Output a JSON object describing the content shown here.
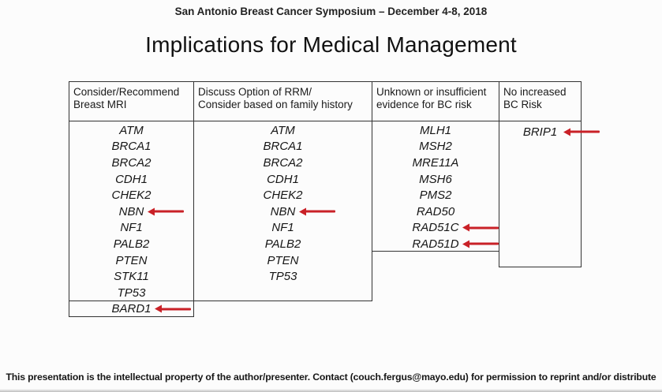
{
  "slide": {
    "symposium_line": "San Antonio Breast Cancer Symposium – December 4-8, 2018",
    "title": "Implications for Medical Management",
    "footer": "This presentation is the intellectual property of the author/presenter.  Contact (couch.fergus@mayo.edu) for permission to reprint and/or distribute"
  },
  "colors": {
    "arrow_red": "#c92127",
    "table_border": "#333333"
  },
  "table": {
    "columns": [
      {
        "id": "breast-mri",
        "header_lines": [
          "Consider/Recommend",
          "Breast MRI"
        ],
        "genes": [
          "ATM",
          "BRCA1",
          "BRCA2",
          "CDH1",
          "CHEK2",
          "NBN",
          "NF1",
          "PALB2",
          "PTEN",
          "STK11",
          "TP53"
        ],
        "arrowed": [
          "NBN"
        ],
        "appended_row": {
          "gene": "BARD1",
          "arrowed": true
        }
      },
      {
        "id": "rrm-option",
        "header_lines": [
          "Discuss Option of RRM/",
          "Consider based on family history"
        ],
        "genes": [
          "ATM",
          "BRCA1",
          "BRCA2",
          "CDH1",
          "CHEK2",
          "NBN",
          "NF1",
          "PALB2",
          "PTEN",
          "TP53"
        ],
        "arrowed": [
          "NBN"
        ]
      },
      {
        "id": "unknown-evidence",
        "header_lines": [
          "Unknown or insufficient",
          "evidence for BC risk"
        ],
        "genes": [
          "MLH1",
          "MSH2",
          "MRE11A",
          "MSH6",
          "PMS2",
          "RAD50",
          "RAD51C",
          "RAD51D"
        ],
        "arrowed": [
          "RAD51C",
          "RAD51D"
        ]
      },
      {
        "id": "no-increase",
        "header_lines": [
          "No increased",
          "BC Risk"
        ],
        "genes": [
          "BRIP1"
        ],
        "arrowed": [
          "BRIP1"
        ]
      }
    ]
  }
}
